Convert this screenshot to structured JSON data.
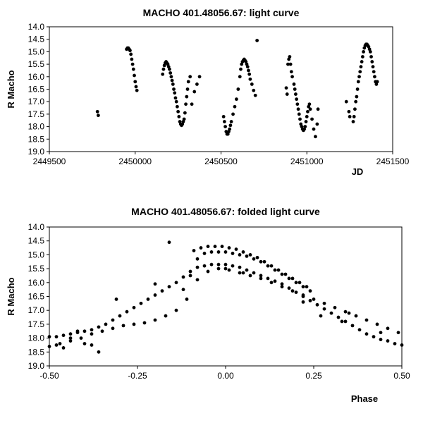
{
  "chart_data": [
    {
      "type": "scatter",
      "title": "MACHO 401.48056.67: light curve",
      "xlabel": "JD",
      "ylabel": "R Macho",
      "xlim": [
        2449500,
        2451500
      ],
      "ylim": [
        14.0,
        19.0
      ],
      "y_inverted": true,
      "xticks": [
        2449500,
        2450000,
        2450500,
        2451000,
        2451500
      ],
      "xtick_labels": [
        "2449500",
        "2450000",
        "2450500",
        "2451000",
        "2451500"
      ],
      "yticks": [
        14.0,
        14.5,
        15.0,
        15.5,
        16.0,
        16.5,
        17.0,
        17.5,
        18.0,
        18.5,
        19.0
      ],
      "ytick_labels": [
        "14.0",
        "14.5",
        "15.0",
        "15.5",
        "16.0",
        "16.5",
        "17.0",
        "17.5",
        "18.0",
        "18.5",
        "19.0"
      ],
      "grid": false,
      "series": [
        {
          "x": [
            2449780,
            2449785,
            2449950,
            2449955,
            2449960,
            2449965,
            2449970,
            2449975,
            2449980,
            2449985,
            2449990,
            2449995,
            2450000,
            2450005,
            2450010,
            2450160,
            2450165,
            2450170,
            2450175,
            2450180,
            2450185,
            2450190,
            2450195,
            2450200,
            2450205,
            2450210,
            2450215,
            2450220,
            2450225,
            2450230,
            2450235,
            2450240,
            2450245,
            2450250,
            2450255,
            2450260,
            2450265,
            2450270,
            2450275,
            2450280,
            2450285,
            2450290,
            2450295,
            2450300,
            2450305,
            2450310,
            2450320,
            2450330,
            2450345,
            2450360,
            2450375,
            2450515,
            2450520,
            2450525,
            2450530,
            2450535,
            2450540,
            2450545,
            2450550,
            2450555,
            2450560,
            2450570,
            2450580,
            2450590,
            2450600,
            2450610,
            2450615,
            2450620,
            2450625,
            2450630,
            2450635,
            2450640,
            2450645,
            2450650,
            2450655,
            2450660,
            2450665,
            2450670,
            2450680,
            2450690,
            2450700,
            2450710,
            2450880,
            2450885,
            2450890,
            2450895,
            2450900,
            2450905,
            2450910,
            2450915,
            2450925,
            2450930,
            2450935,
            2450940,
            2450945,
            2450950,
            2450955,
            2450960,
            2450965,
            2450970,
            2450975,
            2450980,
            2450985,
            2450990,
            2450995,
            2451000,
            2451005,
            2451010,
            2451015,
            2451020,
            2451030,
            2451040,
            2451050,
            2451060,
            2451065,
            2451230,
            2451245,
            2451250,
            2451270,
            2451275,
            2451280,
            2451285,
            2451290,
            2451295,
            2451300,
            2451305,
            2451310,
            2451315,
            2451320,
            2451325,
            2451330,
            2451335,
            2451340,
            2451345,
            2451350,
            2451355,
            2451360,
            2451365,
            2451370,
            2451375,
            2451380,
            2451385,
            2451390,
            2451395,
            2451400,
            2451405,
            2451410
          ],
          "y": [
            17.4,
            17.55,
            14.9,
            14.85,
            14.85,
            14.9,
            14.95,
            15.1,
            15.3,
            15.5,
            15.7,
            15.95,
            16.2,
            16.4,
            16.55,
            15.9,
            15.7,
            15.55,
            15.45,
            15.4,
            15.45,
            15.5,
            15.6,
            15.7,
            15.85,
            16.0,
            16.15,
            16.3,
            16.5,
            16.65,
            16.85,
            17.0,
            17.2,
            17.4,
            17.6,
            17.8,
            17.9,
            17.95,
            17.9,
            17.8,
            17.7,
            17.45,
            17.1,
            16.8,
            16.5,
            16.2,
            16.0,
            17.1,
            16.6,
            16.3,
            16.0,
            17.6,
            17.8,
            18.0,
            18.2,
            18.3,
            18.3,
            18.2,
            18.1,
            17.95,
            17.8,
            17.5,
            17.2,
            16.9,
            16.5,
            16.0,
            15.7,
            15.5,
            15.4,
            15.35,
            15.3,
            15.35,
            15.4,
            15.5,
            15.6,
            15.75,
            15.9,
            16.1,
            16.3,
            16.55,
            16.75,
            14.55,
            16.45,
            16.7,
            15.5,
            15.3,
            15.2,
            15.5,
            15.8,
            16.0,
            16.3,
            16.5,
            16.7,
            16.9,
            17.1,
            17.3,
            17.5,
            17.7,
            17.9,
            18.0,
            18.1,
            18.15,
            18.1,
            18.0,
            17.8,
            17.6,
            17.4,
            17.2,
            17.1,
            17.3,
            17.7,
            18.1,
            18.4,
            17.9,
            17.3,
            17.0,
            17.4,
            17.6,
            17.8,
            17.6,
            17.3,
            17.0,
            16.8,
            16.5,
            16.2,
            16.0,
            15.8,
            15.6,
            15.4,
            15.2,
            15.0,
            14.85,
            14.75,
            14.7,
            14.7,
            14.75,
            14.8,
            14.9,
            15.0,
            15.2,
            15.4,
            15.6,
            15.8,
            16.0,
            16.2,
            16.3,
            16.2
          ]
        }
      ]
    },
    {
      "type": "scatter",
      "title": "MACHO 401.48056.67: folded light curve",
      "xlabel": "Phase",
      "ylabel": "R Macho",
      "xlim": [
        -0.5,
        0.5
      ],
      "ylim": [
        14.0,
        19.0
      ],
      "y_inverted": true,
      "xticks": [
        -0.5,
        -0.25,
        0.0,
        0.25,
        0.5
      ],
      "xtick_labels": [
        "-0.50",
        "-0.25",
        "0.00",
        "0.25",
        "0.50"
      ],
      "yticks": [
        14.0,
        14.5,
        15.0,
        15.5,
        16.0,
        16.5,
        17.0,
        17.5,
        18.0,
        18.5,
        19.0
      ],
      "ytick_labels": [
        "14.0",
        "14.5",
        "15.0",
        "15.5",
        "16.0",
        "16.5",
        "17.0",
        "17.5",
        "18.0",
        "18.5",
        "19.0"
      ],
      "grid": false,
      "series": [
        {
          "x": [
            -0.5,
            -0.48,
            -0.46,
            -0.44,
            -0.42,
            -0.4,
            -0.38,
            -0.36,
            -0.34,
            -0.32,
            -0.3,
            -0.28,
            -0.26,
            -0.24,
            -0.22,
            -0.2,
            -0.18,
            -0.16,
            -0.14,
            -0.12,
            -0.1,
            -0.08,
            -0.06,
            -0.04,
            -0.02,
            0.0,
            0.02,
            0.04,
            0.06,
            0.08,
            0.1,
            0.12,
            0.14,
            0.16,
            0.18,
            0.2,
            0.22,
            0.24,
            0.26,
            0.28,
            0.3,
            0.32,
            0.34,
            0.36,
            0.38,
            0.4,
            0.42,
            0.44,
            0.46,
            0.48,
            0.5,
            -0.5,
            -0.47,
            -0.44,
            -0.41,
            -0.38,
            -0.35,
            -0.32,
            -0.29,
            -0.26,
            -0.23,
            -0.2,
            -0.17,
            -0.14,
            -0.11,
            -0.08,
            -0.05,
            -0.02,
            0.01,
            0.04,
            0.07,
            0.1,
            0.13,
            0.16,
            0.19,
            0.22,
            0.25,
            0.28,
            0.31,
            0.34,
            0.37,
            0.4,
            0.43,
            0.46,
            0.49,
            -0.08,
            -0.06,
            -0.04,
            -0.02,
            0.0,
            0.02,
            0.04,
            0.06,
            0.08,
            0.1,
            0.12,
            0.14,
            0.16,
            0.18,
            0.2,
            0.22,
            0.24,
            -0.09,
            -0.07,
            -0.05,
            -0.03,
            -0.01,
            0.01,
            0.03,
            0.05,
            0.07,
            0.09,
            0.11,
            0.13,
            0.15,
            0.17,
            0.19,
            0.21,
            0.23,
            -0.48,
            -0.46,
            -0.44,
            -0.4,
            -0.38,
            -0.36,
            -0.16,
            -0.2,
            0.05,
            0.0,
            0.22,
            0.35,
            -0.1,
            -0.12,
            -0.42,
            -0.31,
            0.27,
            0.33,
            0.44
          ],
          "y": [
            17.95,
            17.95,
            17.9,
            17.85,
            17.8,
            17.75,
            17.7,
            17.6,
            17.5,
            17.35,
            17.2,
            17.05,
            16.9,
            16.75,
            16.6,
            16.45,
            16.3,
            16.15,
            16.0,
            15.8,
            15.6,
            15.45,
            15.4,
            15.35,
            15.35,
            15.35,
            15.4,
            15.45,
            15.55,
            15.65,
            15.75,
            15.85,
            15.95,
            16.05,
            16.2,
            16.35,
            16.5,
            16.65,
            16.8,
            16.95,
            17.1,
            17.25,
            17.4,
            17.55,
            17.7,
            17.85,
            17.95,
            18.05,
            18.1,
            18.2,
            18.25,
            18.3,
            18.2,
            18.1,
            18.0,
            17.85,
            17.75,
            17.65,
            17.55,
            17.5,
            17.45,
            17.35,
            17.2,
            17.0,
            16.6,
            15.9,
            15.6,
            15.5,
            15.55,
            15.65,
            15.75,
            15.85,
            16.0,
            16.15,
            16.3,
            16.45,
            16.6,
            16.75,
            16.9,
            17.05,
            17.2,
            17.35,
            17.5,
            17.65,
            17.8,
            15.15,
            14.95,
            14.9,
            14.9,
            14.9,
            14.95,
            15.0,
            15.05,
            15.15,
            15.25,
            15.4,
            15.55,
            15.7,
            15.85,
            16.0,
            16.15,
            16.3,
            14.85,
            14.75,
            14.7,
            14.7,
            14.7,
            14.75,
            14.8,
            14.9,
            15.0,
            15.1,
            15.25,
            15.4,
            15.55,
            15.7,
            15.85,
            16.0,
            16.15,
            18.25,
            18.35,
            18.0,
            18.2,
            18.25,
            18.5,
            14.55,
            16.05,
            15.65,
            15.5,
            16.7,
            17.1,
            15.75,
            16.25,
            17.75,
            16.6,
            17.2,
            17.4,
            17.8
          ]
        }
      ]
    }
  ]
}
